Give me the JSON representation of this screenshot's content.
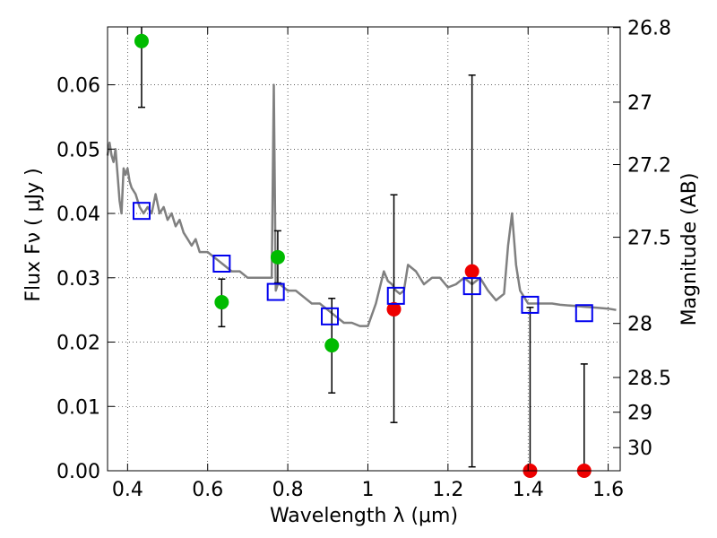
{
  "chart_data": {
    "type": "scatter",
    "xlabel": "Wavelength  λ (μm)",
    "ylabel": "Flux  Fν  ( μJy )",
    "y2label": "Magnitude (AB)",
    "xlim": [
      0.35,
      1.63
    ],
    "ylim": [
      0.0,
      0.069
    ],
    "grid": true,
    "x_ticks": [
      0.4,
      0.6,
      0.8,
      1.0,
      1.2,
      1.4,
      1.6
    ],
    "x_tick_labels": [
      "0.4",
      "0.6",
      "0.8",
      "1",
      "1.2",
      "1.4",
      "1.6"
    ],
    "y_ticks": [
      0.0,
      0.01,
      0.02,
      0.03,
      0.04,
      0.05,
      0.06
    ],
    "y_tick_labels": [
      "0.00",
      "0.01",
      "0.02",
      "0.03",
      "0.04",
      "0.05",
      "0.06"
    ],
    "y2_ticks": [
      {
        "label": "26.8",
        "flux": 0.0689
      },
      {
        "label": "27",
        "flux": 0.0573
      },
      {
        "label": "27.2",
        "flux": 0.0476
      },
      {
        "label": "27.5",
        "flux": 0.0363
      },
      {
        "label": "28",
        "flux": 0.0229
      },
      {
        "label": "28.5",
        "flux": 0.0145
      },
      {
        "label": "29",
        "flux": 0.0091
      },
      {
        "label": "30",
        "flux": 0.0036
      }
    ],
    "model_spectrum": {
      "color": "#808080",
      "x": [
        0.35,
        0.355,
        0.36,
        0.365,
        0.37,
        0.375,
        0.38,
        0.385,
        0.39,
        0.395,
        0.4,
        0.405,
        0.41,
        0.42,
        0.43,
        0.44,
        0.45,
        0.46,
        0.47,
        0.48,
        0.49,
        0.5,
        0.51,
        0.52,
        0.53,
        0.54,
        0.55,
        0.56,
        0.57,
        0.58,
        0.6,
        0.62,
        0.64,
        0.66,
        0.68,
        0.7,
        0.72,
        0.74,
        0.76,
        0.765,
        0.77,
        0.775,
        0.78,
        0.8,
        0.82,
        0.84,
        0.86,
        0.88,
        0.9,
        0.92,
        0.94,
        0.96,
        0.98,
        1.0,
        1.02,
        1.04,
        1.05,
        1.06,
        1.07,
        1.08,
        1.09,
        1.1,
        1.12,
        1.14,
        1.16,
        1.18,
        1.2,
        1.22,
        1.24,
        1.26,
        1.28,
        1.3,
        1.32,
        1.34,
        1.35,
        1.36,
        1.37,
        1.38,
        1.39,
        1.4,
        1.42,
        1.44,
        1.46,
        1.48,
        1.5,
        1.52,
        1.54,
        1.56,
        1.58,
        1.6,
        1.62
      ],
      "y": [
        0.049,
        0.051,
        0.049,
        0.048,
        0.05,
        0.046,
        0.042,
        0.04,
        0.047,
        0.046,
        0.047,
        0.045,
        0.044,
        0.043,
        0.041,
        0.04,
        0.041,
        0.04,
        0.043,
        0.04,
        0.041,
        0.039,
        0.04,
        0.038,
        0.039,
        0.037,
        0.036,
        0.035,
        0.036,
        0.034,
        0.034,
        0.033,
        0.032,
        0.031,
        0.031,
        0.03,
        0.03,
        0.03,
        0.03,
        0.06,
        0.028,
        0.029,
        0.029,
        0.028,
        0.028,
        0.027,
        0.026,
        0.026,
        0.025,
        0.024,
        0.023,
        0.023,
        0.0225,
        0.0225,
        0.026,
        0.031,
        0.0295,
        0.029,
        0.028,
        0.0275,
        0.028,
        0.032,
        0.031,
        0.029,
        0.03,
        0.03,
        0.0285,
        0.029,
        0.03,
        0.029,
        0.03,
        0.028,
        0.0265,
        0.0275,
        0.035,
        0.04,
        0.032,
        0.028,
        0.027,
        0.026,
        0.026,
        0.026,
        0.026,
        0.0258,
        0.0257,
        0.0256,
        0.0255,
        0.0254,
        0.0253,
        0.0252,
        0.025
      ]
    },
    "series": [
      {
        "marker": "circle",
        "color": "#00bb00",
        "points": [
          {
            "x": 0.435,
            "y": 0.0668,
            "err_lo": 0.0565,
            "err_hi": 0.069
          },
          {
            "x": 0.635,
            "y": 0.0262,
            "err_lo": 0.0224,
            "err_hi": 0.0298
          },
          {
            "x": 0.775,
            "y": 0.0332,
            "err_lo": 0.0292,
            "err_hi": 0.0373
          },
          {
            "x": 0.91,
            "y": 0.0195,
            "err_lo": 0.0121,
            "err_hi": 0.0268
          }
        ]
      },
      {
        "marker": "circle",
        "color": "#ee0000",
        "points": [
          {
            "x": 1.065,
            "y": 0.0251,
            "err_lo": 0.0075,
            "err_hi": 0.0429
          },
          {
            "x": 1.26,
            "y": 0.031,
            "err_lo": 0.0006,
            "err_hi": 0.0615
          },
          {
            "x": 1.405,
            "y": 0.0,
            "err_lo": 0.0,
            "err_hi": 0.0254
          },
          {
            "x": 1.54,
            "y": 0.0,
            "err_lo": 0.0,
            "err_hi": 0.0166
          }
        ]
      },
      {
        "marker": "square",
        "color": "#0000ee",
        "points": [
          {
            "x": 0.435,
            "y": 0.0404
          },
          {
            "x": 0.635,
            "y": 0.0322
          },
          {
            "x": 0.77,
            "y": 0.0278
          },
          {
            "x": 0.905,
            "y": 0.024
          },
          {
            "x": 1.07,
            "y": 0.0272
          },
          {
            "x": 1.26,
            "y": 0.0287
          },
          {
            "x": 1.405,
            "y": 0.0258
          },
          {
            "x": 1.54,
            "y": 0.0245
          }
        ]
      }
    ]
  }
}
